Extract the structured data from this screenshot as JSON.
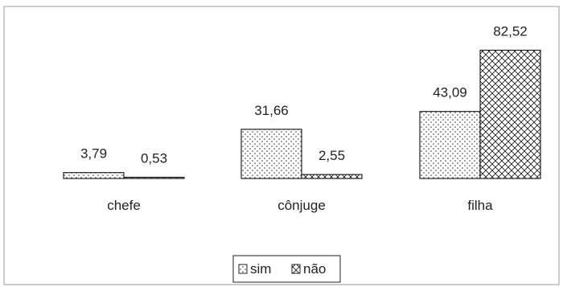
{
  "chart_data": {
    "type": "bar",
    "categories": [
      "chefe",
      "cônjuge",
      "filha"
    ],
    "series": [
      {
        "name": "sim",
        "values": [
          3.79,
          31.66,
          43.09
        ],
        "labels": [
          "3,79",
          "31,66",
          "43,09"
        ],
        "pattern": "dots"
      },
      {
        "name": "não",
        "values": [
          0.53,
          2.55,
          82.52
        ],
        "labels": [
          "0,53",
          "2,55",
          "82,52"
        ],
        "pattern": "crosshatch"
      }
    ],
    "ylim": [
      0,
      90
    ],
    "grid": false,
    "legend": "bottom-center",
    "colors": {
      "stroke": "#222222",
      "fill": "#ffffff",
      "frame": "#999999"
    }
  }
}
